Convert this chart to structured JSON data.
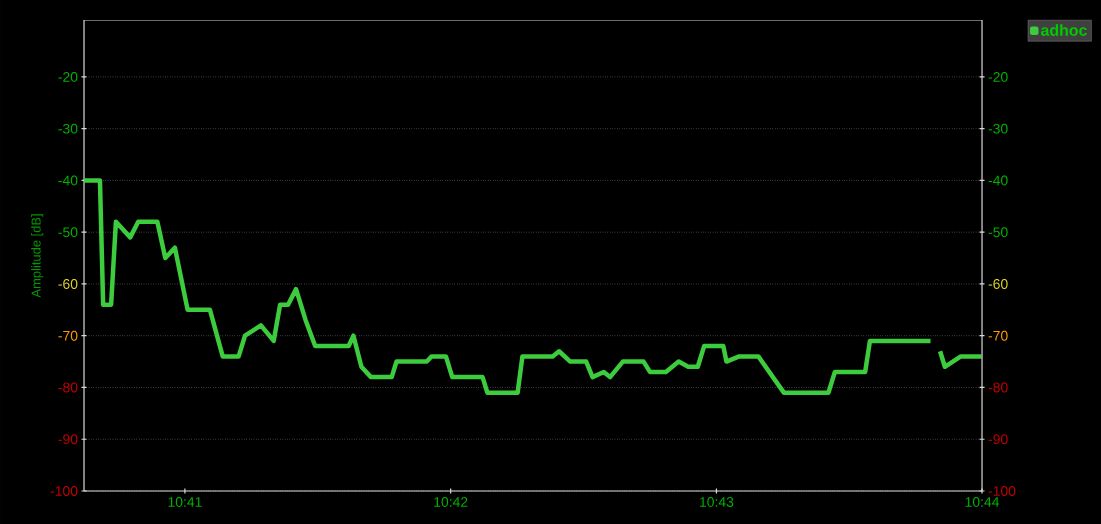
{
  "chart_data": {
    "type": "line",
    "ylabel": "Amplitude [dB]",
    "x": [
      10.677,
      10.678,
      10.6782,
      10.6787,
      10.679,
      10.6799,
      10.6804,
      10.6816,
      10.6821,
      10.6827,
      10.6835,
      10.6849,
      10.6857,
      10.6867,
      10.6871,
      10.6881,
      10.6889,
      10.6893,
      10.6898,
      10.6903,
      10.6909,
      10.6915,
      10.6936,
      10.6939,
      10.6944,
      10.695,
      10.6963,
      10.6966,
      10.6985,
      10.6988,
      10.6997,
      10.7001,
      10.702,
      10.7023,
      10.7042,
      10.7045,
      10.7064,
      10.7068,
      10.7075,
      10.7085,
      10.7089,
      10.7096,
      10.71,
      10.7108,
      10.7121,
      10.7125,
      10.7135,
      10.7143,
      10.7149,
      10.7155,
      10.7159,
      10.7171,
      10.7173,
      10.7181,
      10.7188,
      10.7193,
      10.7209,
      10.7237,
      10.7241,
      10.726,
      10.7263,
      10.7301,
      10.7304,
      10.7307,
      10.731,
      10.732,
      10.7333
    ],
    "series": [
      {
        "name": "adhoc",
        "color": "#3dcc3d",
        "values": [
          -40,
          -40,
          -64,
          -64,
          -48,
          -51,
          -48,
          -48,
          -55,
          -53,
          -65,
          -65,
          -74,
          -74,
          -70,
          -68,
          -71,
          -64,
          -64,
          -61,
          -67,
          -72,
          -72,
          -70,
          -76,
          -78,
          -78,
          -75,
          -75,
          -74,
          -74,
          -78,
          -78,
          -81,
          -81,
          -74,
          -74,
          -73,
          -75,
          -75,
          -78,
          -77,
          -78,
          -75,
          -75,
          -77,
          -77,
          -75,
          -76,
          -76,
          -72,
          -72,
          -75,
          -74,
          -74,
          -74,
          -81,
          -81,
          -77,
          -77,
          -71,
          -71,
          null,
          -73,
          -76,
          -74,
          -74
        ]
      }
    ],
    "xlim": [
      10.677,
      10.73333
    ],
    "xticks": [
      {
        "value": 10.68333,
        "label": "10:41"
      },
      {
        "value": 10.7,
        "label": "10:42"
      },
      {
        "value": 10.71667,
        "label": "10:43"
      },
      {
        "value": 10.73333,
        "label": "10:44"
      }
    ],
    "ylim": [
      -100,
      -9
    ],
    "yticks": [
      -100,
      -90,
      -80,
      -70,
      -60,
      -50,
      -40,
      -30,
      -20
    ],
    "y2lim": [
      -100,
      -9
    ],
    "y2ticks": [
      -100,
      -90,
      -80,
      -70,
      -60,
      -50,
      -40,
      -30,
      -20
    ],
    "grid": "y",
    "legend": "top right",
    "marker": "none",
    "line_style": "solid"
  }
}
